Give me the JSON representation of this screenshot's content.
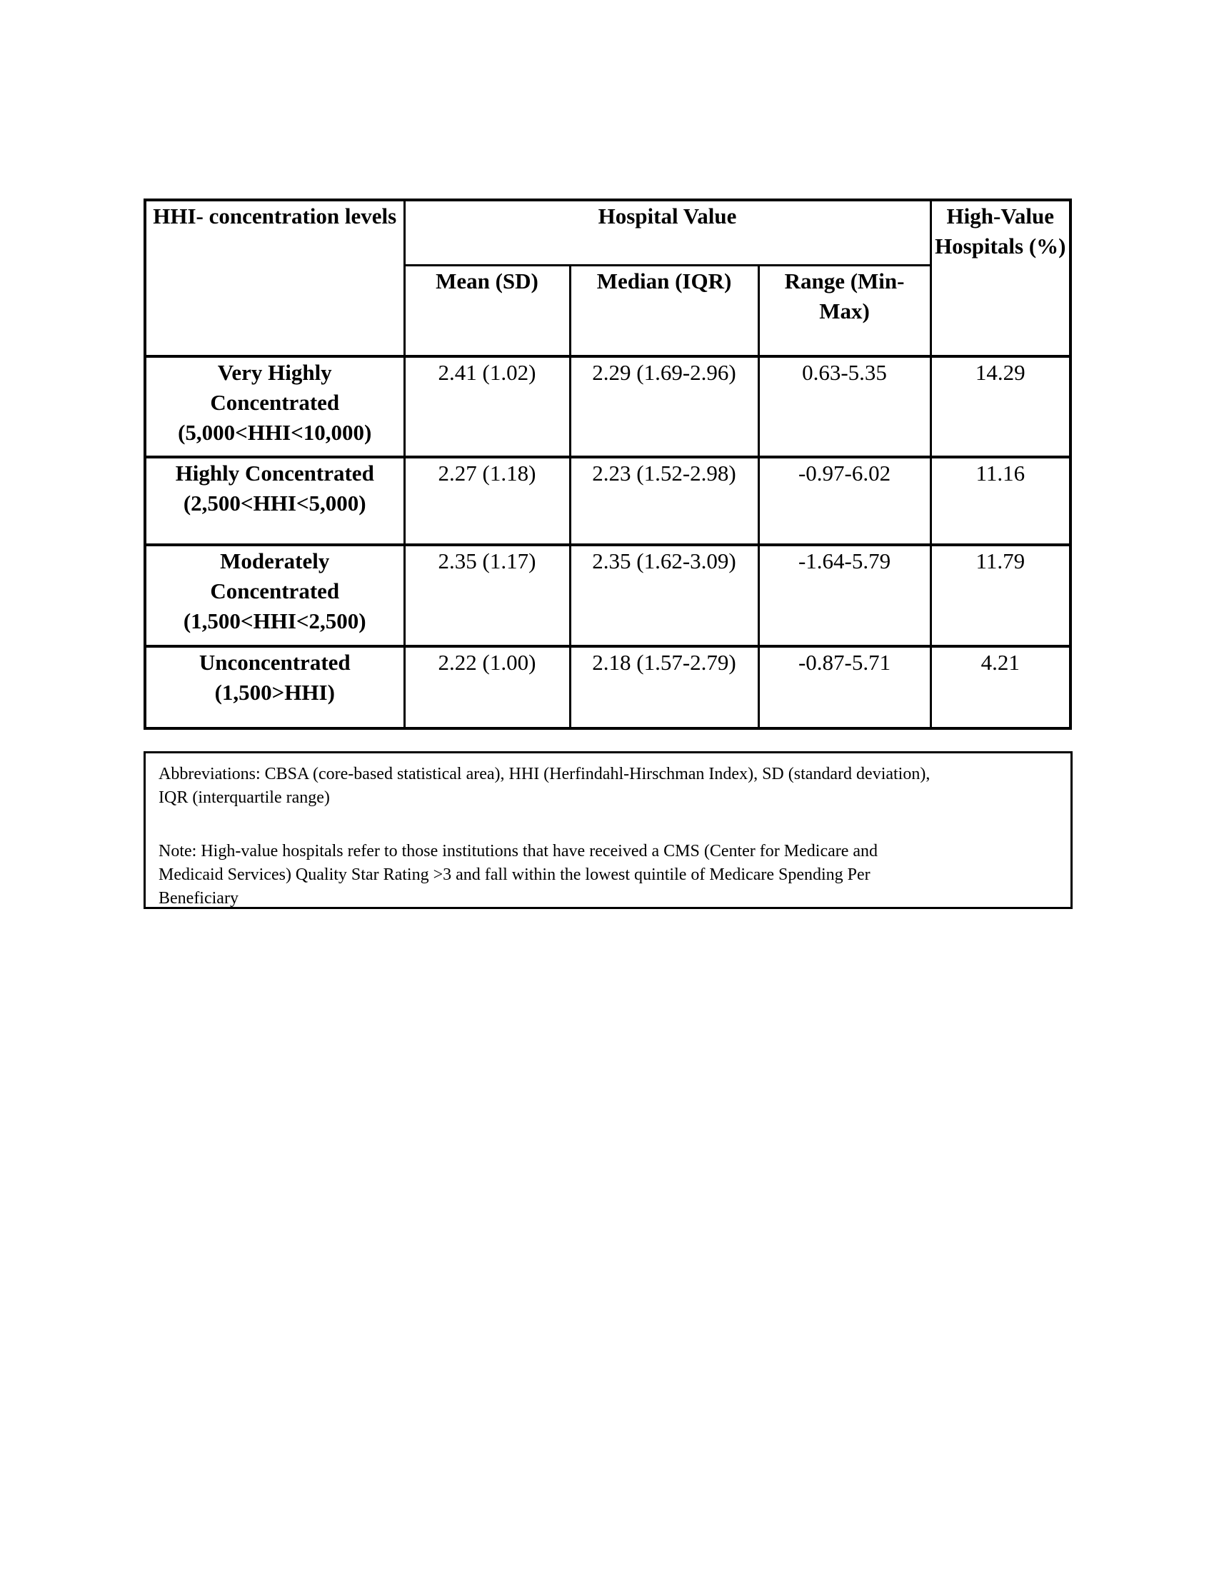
{
  "page": {
    "background": "#ffffff",
    "text_color": "#000000",
    "border_color": "#000000"
  },
  "table": {
    "header": {
      "row_dimension": "HHI- concentration levels",
      "group": "Hospital Value",
      "sub": [
        "Mean (SD)",
        "Median (IQR)",
        "Range (Min-Max)"
      ],
      "last_col": "High-Value Hospitals (%)"
    },
    "rows": [
      {
        "label_lines": [
          "Very Highly",
          "Concentrated",
          "(5,000<HHI<10,000)"
        ],
        "mean_sd": "2.41 (1.02)",
        "median_iqr": "2.29 (1.69-2.96)",
        "range_min_max": "0.63-5.35",
        "high_value_pct": "14.29"
      },
      {
        "label_lines": [
          "Highly Concentrated",
          "(2,500<HHI<5,000)"
        ],
        "mean_sd": "2.27 (1.18)",
        "median_iqr": "2.23 (1.52-2.98)",
        "range_min_max": "-0.97-6.02",
        "high_value_pct": "11.16"
      },
      {
        "label_lines": [
          "Moderately",
          "Concentrated",
          "(1,500<HHI<2,500)"
        ],
        "mean_sd": "2.35 (1.17)",
        "median_iqr": "2.35 (1.62-3.09)",
        "range_min_max": "-1.64-5.79",
        "high_value_pct": "11.79"
      },
      {
        "label_lines": [
          "Unconcentrated",
          "(1,500>HHI)"
        ],
        "mean_sd": "2.22 (1.00)",
        "median_iqr": "2.18 (1.57-2.79)",
        "range_min_max": "-0.87-5.71",
        "high_value_pct": "4.21"
      }
    ]
  },
  "footnotes": {
    "abbreviations_lines": [
      "Abbreviations: CBSA (core-based statistical area), HHI (Herfindahl-Hirschman Index), SD (standard deviation),",
      "IQR (interquartile range)"
    ],
    "note_lines": [
      "Note: High-value hospitals refer to those institutions that have received a CMS (Center for Medicare and",
      "Medicaid Services) Quality Star Rating >3 and fall within the lowest quintile of Medicare Spending Per",
      "Beneficiary"
    ]
  }
}
